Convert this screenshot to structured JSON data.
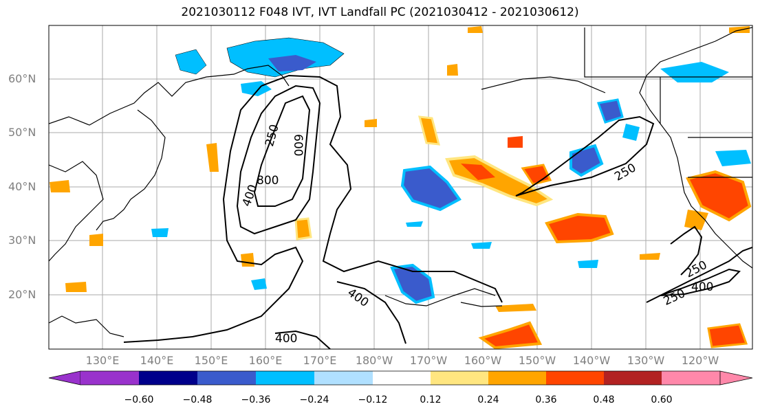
{
  "title": "2021030112 F048 IVT, IVT Landfall PC (2021030412 - 2021030612)",
  "lat_labels": [
    "60°N",
    "50°N",
    "40°N",
    "30°N",
    "20°N"
  ],
  "lon_labels": [
    "130°E",
    "140°E",
    "150°E",
    "160°E",
    "170°E",
    "180°W",
    "170°W",
    "160°W",
    "150°W",
    "140°W",
    "130°W",
    "120°W"
  ],
  "colorbar": {
    "colors": [
      "#9932cc",
      "#00008b",
      "#3a5bcc",
      "#00bfff",
      "#b0e0ff",
      "#ffffff",
      "#ffe680",
      "#ffa500",
      "#ff4500",
      "#b22222",
      "#ff88aa"
    ],
    "ticks": [
      "−0.60",
      "−0.48",
      "−0.36",
      "−0.24",
      "−0.12",
      "0.12",
      "0.24",
      "0.36",
      "0.48",
      "0.60"
    ]
  },
  "contour_labels": [
    "250",
    "600",
    "400",
    "800",
    "400",
    "400",
    "250",
    "250",
    "250",
    "400"
  ]
}
